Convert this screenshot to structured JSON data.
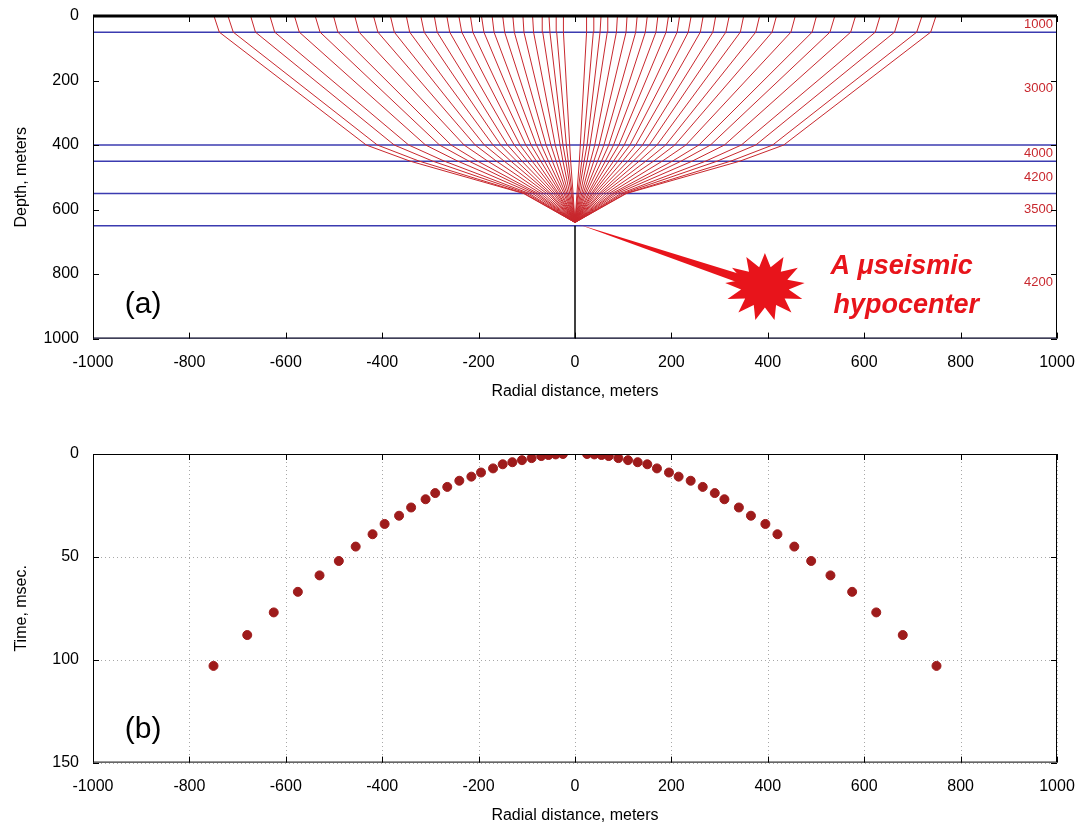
{
  "chart_data": [
    {
      "type": "line",
      "label": "(a)",
      "x_label": "Radial distance, meters",
      "y_label": "Depth, meters",
      "xlim": [
        -1000,
        1000
      ],
      "xticks": [
        -1000,
        -800,
        -600,
        -400,
        -200,
        0,
        200,
        400,
        600,
        800,
        1000
      ],
      "ylim": [
        1000,
        0
      ],
      "yticks": [
        0,
        200,
        400,
        600,
        800,
        1000
      ],
      "grid": false,
      "surface_depth": 0,
      "layers": [
        {
          "top": 0,
          "bottom": 50,
          "velocity": 1000
        },
        {
          "top": 50,
          "bottom": 400,
          "velocity": 3000
        },
        {
          "top": 400,
          "bottom": 450,
          "velocity": 4000
        },
        {
          "top": 450,
          "bottom": 550,
          "velocity": 4200
        },
        {
          "top": 550,
          "bottom": 650,
          "velocity": 3500
        },
        {
          "top": 650,
          "bottom": 1000,
          "velocity": 4200
        }
      ],
      "well": {
        "x": 0,
        "top": 650,
        "bottom": 1000
      },
      "hypocenter": {
        "x": 0,
        "depth": 640
      },
      "annotation": [
        "A μseismic",
        "hypocenter"
      ],
      "rays": {
        "color": "#c8282e",
        "depths": [
          640,
          550,
          450,
          400,
          50,
          0
        ],
        "x": [
          [
            0,
            -107,
            -342,
            -433,
            -738,
            -749
          ],
          [
            0,
            -105,
            -323,
            -410,
            -709,
            -720
          ],
          [
            0,
            -100,
            -295,
            -375,
            -663,
            -673
          ],
          [
            0,
            -95,
            -271,
            -345,
            -623,
            -633
          ],
          [
            0,
            -88,
            -243,
            -310,
            -572,
            -582
          ],
          [
            0,
            -82,
            -220,
            -281,
            -529,
            -539
          ],
          [
            0,
            -77,
            -202,
            -257,
            -492,
            -501
          ],
          [
            0,
            -71,
            -181,
            -230,
            -448,
            -457
          ],
          [
            0,
            -65,
            -163,
            -207,
            -409,
            -418
          ],
          [
            0,
            -59,
            -147,
            -188,
            -375,
            -383
          ],
          [
            0,
            -54,
            -133,
            -170,
            -343,
            -350
          ],
          [
            0,
            -50,
            -121,
            -154,
            -313,
            -320
          ],
          [
            0,
            -45,
            -110,
            -140,
            -286,
            -292
          ],
          [
            0,
            -41,
            -99,
            -126,
            -260,
            -266
          ],
          [
            0,
            -37,
            -89,
            -114,
            -235,
            -241
          ],
          [
            0,
            -34,
            -80,
            -102,
            -212,
            -217
          ],
          [
            0,
            -30,
            -71,
            -91,
            -189,
            -194
          ],
          [
            0,
            -27,
            -63,
            -80,
            -168,
            -172
          ],
          [
            0,
            -23,
            -55,
            -70,
            -146,
            -150
          ],
          [
            0,
            -20,
            -47,
            -60,
            -126,
            -129
          ],
          [
            0,
            -17,
            -39,
            -50,
            -106,
            -108
          ],
          [
            0,
            -14,
            -32,
            -41,
            -86,
            -88
          ],
          [
            0,
            -11,
            -25,
            -31,
            -67,
            -68
          ],
          [
            0,
            -8,
            -19,
            -25,
            -52,
            -54
          ],
          [
            0,
            -6,
            -14,
            -18,
            -38,
            -39
          ],
          [
            0,
            -4,
            -9,
            -11,
            -24,
            -24
          ],
          [
            0,
            4,
            9,
            11,
            24,
            24
          ],
          [
            0,
            6,
            14,
            18,
            38,
            39
          ],
          [
            0,
            8,
            19,
            25,
            52,
            54
          ],
          [
            0,
            11,
            25,
            31,
            67,
            68
          ],
          [
            0,
            14,
            32,
            41,
            86,
            88
          ],
          [
            0,
            17,
            39,
            50,
            106,
            108
          ],
          [
            0,
            20,
            47,
            60,
            126,
            129
          ],
          [
            0,
            23,
            55,
            70,
            146,
            150
          ],
          [
            0,
            27,
            63,
            80,
            168,
            172
          ],
          [
            0,
            30,
            71,
            91,
            189,
            194
          ],
          [
            0,
            34,
            80,
            102,
            212,
            217
          ],
          [
            0,
            37,
            89,
            114,
            235,
            241
          ],
          [
            0,
            41,
            99,
            126,
            260,
            266
          ],
          [
            0,
            45,
            110,
            140,
            286,
            292
          ],
          [
            0,
            50,
            121,
            154,
            313,
            320
          ],
          [
            0,
            54,
            133,
            170,
            343,
            350
          ],
          [
            0,
            59,
            147,
            188,
            375,
            383
          ],
          [
            0,
            65,
            163,
            207,
            409,
            418
          ],
          [
            0,
            71,
            181,
            230,
            448,
            457
          ],
          [
            0,
            77,
            202,
            257,
            492,
            501
          ],
          [
            0,
            82,
            220,
            281,
            529,
            539
          ],
          [
            0,
            88,
            243,
            310,
            572,
            582
          ],
          [
            0,
            95,
            271,
            345,
            623,
            633
          ],
          [
            0,
            100,
            295,
            375,
            663,
            673
          ],
          [
            0,
            105,
            323,
            410,
            709,
            720
          ],
          [
            0,
            107,
            342,
            433,
            738,
            749
          ]
        ]
      }
    },
    {
      "type": "scatter",
      "label": "(b)",
      "x_label": "Radial distance, meters",
      "y_label": "Time, msec.",
      "xlim": [
        -1000,
        1000
      ],
      "xticks": [
        -1000,
        -800,
        -600,
        -400,
        -200,
        0,
        200,
        400,
        600,
        800,
        1000
      ],
      "ylim": [
        150,
        0
      ],
      "yticks": [
        0,
        50,
        100,
        150
      ],
      "grid": true,
      "series": [
        {
          "color": "#9e1b1b",
          "marker": "circle",
          "x": [
            -750,
            -680,
            -625,
            -575,
            -530,
            -490,
            -455,
            -420,
            -395,
            -365,
            -340,
            -310,
            -290,
            -265,
            -240,
            -215,
            -195,
            -170,
            -150,
            -130,
            -110,
            -90,
            -70,
            -55,
            -40,
            -25,
            25,
            40,
            55,
            70,
            90,
            110,
            130,
            150,
            170,
            195,
            215,
            240,
            265,
            290,
            310,
            340,
            365,
            395,
            420,
            455,
            490,
            530,
            575,
            625,
            680,
            750
          ],
          "values": [
            103,
            88,
            77,
            67,
            59,
            52,
            45,
            39,
            34,
            30,
            26,
            22,
            19,
            16,
            13,
            11,
            9,
            7,
            5,
            4,
            3,
            2,
            1,
            0.5,
            0.2,
            0,
            0,
            0.2,
            0.5,
            1,
            2,
            3,
            4,
            5,
            7,
            9,
            11,
            13,
            16,
            19,
            22,
            26,
            30,
            34,
            39,
            45,
            52,
            59,
            67,
            77,
            88,
            103
          ]
        }
      ]
    }
  ]
}
